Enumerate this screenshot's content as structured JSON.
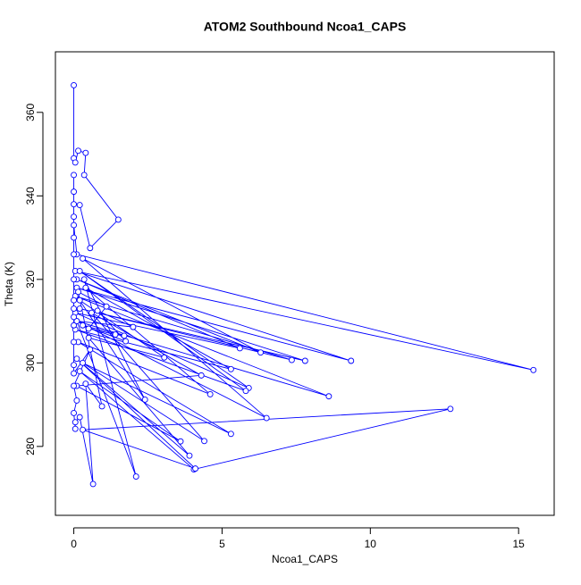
{
  "chart_data": {
    "type": "line",
    "title": "ATOM2 Southbound Ncoa1_CAPS",
    "x_label": "Ncoa1_CAPS",
    "y_label": "Theta (K)",
    "x": [
      0,
      0,
      0.05,
      0.15,
      0.4,
      0.35,
      1.5,
      0.55,
      0.2,
      0,
      0,
      0.1,
      15.5,
      0.05,
      9.35,
      0.1,
      7.8,
      0.2,
      7.35,
      0.05,
      8.6,
      0.1,
      6.5,
      0.3,
      6.3,
      0.1,
      5.6,
      0.05,
      5.9,
      0.2,
      5.8,
      0.05,
      5.3,
      0.4,
      4.6,
      0.15,
      5.3,
      0.3,
      4.4,
      0.6,
      4.3,
      0.1,
      3.6,
      0.2,
      4.05,
      12.7,
      0.3,
      4.1,
      0.1,
      3.9,
      0.5,
      3.05,
      0.2,
      2.4,
      0.35,
      2.1,
      0.1,
      2.0,
      0.8,
      1.75,
      0.3,
      1.7,
      1.4,
      0.5,
      1.1,
      0.15,
      0.95,
      0.4,
      0.65,
      0.2,
      0.05,
      0.05,
      0,
      0.1,
      0,
      0.55,
      0,
      0,
      0,
      0,
      0,
      0,
      0,
      0,
      0,
      0,
      0,
      0,
      0
    ],
    "values": [
      366.5,
      349,
      348,
      350.8,
      350.3,
      345,
      334.3,
      327.5,
      337.8,
      338,
      333,
      326,
      298.3,
      322,
      300.5,
      318,
      300.5,
      313,
      300.7,
      316,
      292,
      310,
      286.8,
      325,
      302.5,
      320,
      303.5,
      312,
      294,
      322,
      293.3,
      308,
      298.5,
      318,
      292.5,
      305,
      283,
      300,
      281.3,
      312,
      297,
      294.5,
      281.2,
      298,
      274.5,
      289,
      284,
      274.7,
      301,
      277.8,
      306,
      301.3,
      315,
      291.2,
      320,
      272.8,
      310,
      308.6,
      312.5,
      305.2,
      309,
      306.5,
      306.8,
      308.2,
      313.5,
      317,
      289.6,
      295,
      271,
      287,
      285.8,
      284.2,
      288,
      291,
      294.5,
      303.2,
      297.5,
      299.5,
      305,
      311,
      315,
      320,
      326,
      330,
      341,
      345,
      335,
      309,
      313
    ],
    "color": "#0000ff",
    "xlim": [
      -0.62,
      16.2
    ],
    "ylim": [
      263.5,
      374.5
    ],
    "xticks": [
      0,
      5,
      10,
      15
    ],
    "yticks": [
      280,
      300,
      320,
      340,
      360
    ]
  }
}
